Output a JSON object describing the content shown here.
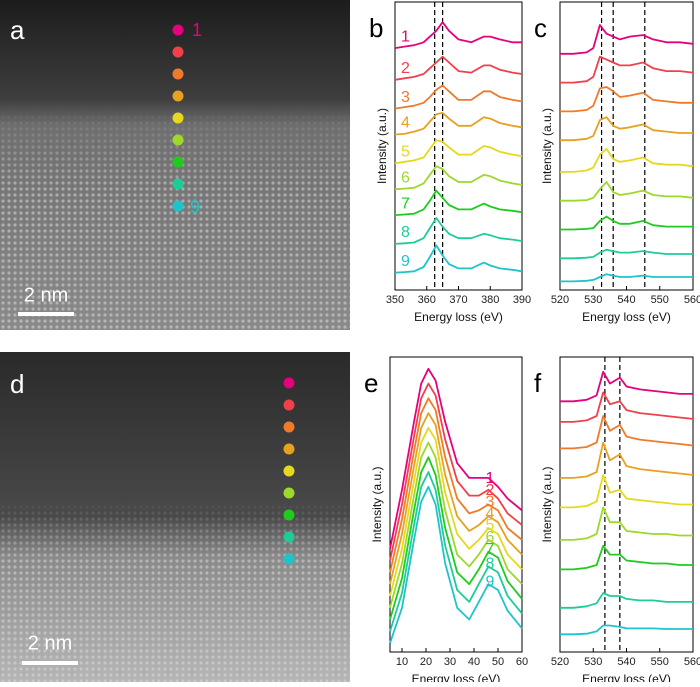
{
  "images": [
    {
      "label": "a",
      "scale_bar": "2 nm",
      "marker_colors": [
        "#e6007e",
        "#f0404a",
        "#f07a2a",
        "#e8a020",
        "#e6d81e",
        "#9ed82a",
        "#1ecc1e",
        "#1ecc9a",
        "#1ec4cc"
      ],
      "first_marker_label": "1",
      "last_marker_label": "9"
    },
    {
      "label": "d",
      "scale_bar": "2 nm",
      "marker_colors": [
        "#e6007e",
        "#f0404a",
        "#f07a2a",
        "#e8a020",
        "#e6d81e",
        "#9ed82a",
        "#1ecc1e",
        "#1ecc9a",
        "#1ec4cc"
      ]
    }
  ],
  "chart_data": [
    {
      "type": "line",
      "panel_label": "b",
      "xlabel": "Energy loss (eV)",
      "ylabel": "Intensity (a.u.)",
      "x": [
        350,
        353,
        356,
        359,
        361,
        363,
        365,
        367,
        370,
        374,
        378,
        380,
        383,
        387,
        390
      ],
      "xlim": [
        350,
        390
      ],
      "xticks": [
        350,
        360,
        370,
        380,
        390
      ],
      "ylim": [
        0,
        10
      ],
      "vlines": [
        362.5,
        365
      ],
      "labels_side": "left",
      "series": [
        {
          "name": "1",
          "color": "#e6007e",
          "values": [
            8.4,
            8.45,
            8.5,
            8.6,
            8.8,
            9.0,
            9.3,
            9.0,
            8.7,
            8.6,
            8.8,
            8.8,
            8.7,
            8.6,
            8.6
          ]
        },
        {
          "name": "2",
          "color": "#f0404a",
          "values": [
            7.3,
            7.35,
            7.4,
            7.5,
            7.7,
            7.9,
            8.1,
            7.9,
            7.6,
            7.55,
            7.8,
            7.8,
            7.65,
            7.55,
            7.5
          ]
        },
        {
          "name": "3",
          "color": "#f07a2a",
          "values": [
            6.3,
            6.35,
            6.4,
            6.5,
            6.7,
            6.95,
            7.1,
            6.9,
            6.6,
            6.6,
            6.9,
            6.9,
            6.7,
            6.6,
            6.55
          ]
        },
        {
          "name": "4",
          "color": "#e8a020",
          "values": [
            5.4,
            5.42,
            5.5,
            5.6,
            5.85,
            6.1,
            6.15,
            5.95,
            5.7,
            5.7,
            6.0,
            5.95,
            5.8,
            5.7,
            5.65
          ]
        },
        {
          "name": "5",
          "color": "#e6d81e",
          "values": [
            4.4,
            4.45,
            4.5,
            4.6,
            4.9,
            5.2,
            5.15,
            4.95,
            4.7,
            4.7,
            5.0,
            4.95,
            4.8,
            4.7,
            4.65
          ]
        },
        {
          "name": "6",
          "color": "#9ed82a",
          "values": [
            3.5,
            3.52,
            3.55,
            3.7,
            4.0,
            4.3,
            4.2,
            3.95,
            3.75,
            3.75,
            4.0,
            3.95,
            3.8,
            3.7,
            3.65
          ]
        },
        {
          "name": "7",
          "color": "#1ecc1e",
          "values": [
            2.6,
            2.62,
            2.65,
            2.8,
            3.1,
            3.45,
            3.2,
            2.95,
            2.8,
            2.8,
            3.0,
            2.9,
            2.8,
            2.75,
            2.7
          ]
        },
        {
          "name": "8",
          "color": "#1ecc9a",
          "values": [
            1.6,
            1.62,
            1.65,
            1.8,
            2.15,
            2.5,
            2.2,
            1.95,
            1.8,
            1.8,
            1.95,
            1.9,
            1.8,
            1.75,
            1.7
          ]
        },
        {
          "name": "9",
          "color": "#1ec4cc",
          "values": [
            0.6,
            0.62,
            0.65,
            0.8,
            1.15,
            1.55,
            1.2,
            0.9,
            0.75,
            0.75,
            0.95,
            0.85,
            0.75,
            0.7,
            0.65
          ]
        }
      ]
    },
    {
      "type": "line",
      "panel_label": "c",
      "xlabel": "Energy loss (eV)",
      "ylabel": "Intensity (a.u.)",
      "x": [
        520,
        524,
        528,
        530,
        532,
        534,
        536,
        538,
        541,
        545,
        548,
        552,
        556,
        560
      ],
      "xlim": [
        520,
        560
      ],
      "xticks": [
        520,
        530,
        540,
        550,
        560
      ],
      "ylim": [
        0,
        10
      ],
      "vlines": [
        532.5,
        536,
        545.5
      ],
      "series": [
        {
          "color": "#e6007e",
          "values": [
            8.2,
            8.2,
            8.25,
            8.4,
            9.2,
            8.9,
            8.8,
            8.7,
            8.8,
            8.85,
            8.7,
            8.6,
            8.6,
            8.55
          ]
        },
        {
          "color": "#f0404a",
          "values": [
            7.2,
            7.2,
            7.25,
            7.4,
            8.1,
            8.0,
            7.9,
            7.8,
            7.8,
            7.9,
            7.7,
            7.6,
            7.6,
            7.55
          ]
        },
        {
          "color": "#f07a2a",
          "values": [
            6.2,
            6.2,
            6.25,
            6.4,
            7.0,
            7.05,
            6.9,
            6.7,
            6.75,
            6.85,
            6.6,
            6.55,
            6.5,
            6.5
          ]
        },
        {
          "color": "#e8a020",
          "values": [
            5.2,
            5.2,
            5.25,
            5.35,
            5.9,
            6.0,
            5.7,
            5.6,
            5.65,
            5.75,
            5.55,
            5.5,
            5.45,
            5.45
          ]
        },
        {
          "color": "#e6d81e",
          "values": [
            4.1,
            4.1,
            4.15,
            4.25,
            4.7,
            4.9,
            4.55,
            4.45,
            4.5,
            4.6,
            4.4,
            4.35,
            4.35,
            4.3
          ]
        },
        {
          "color": "#9ed82a",
          "values": [
            3.1,
            3.1,
            3.12,
            3.2,
            3.5,
            3.75,
            3.4,
            3.3,
            3.35,
            3.45,
            3.3,
            3.25,
            3.25,
            3.2
          ]
        },
        {
          "color": "#1ecc1e",
          "values": [
            2.1,
            2.1,
            2.12,
            2.15,
            2.4,
            2.55,
            2.4,
            2.3,
            2.3,
            2.4,
            2.25,
            2.2,
            2.2,
            2.2
          ]
        },
        {
          "color": "#1ecc9a",
          "values": [
            1.1,
            1.1,
            1.12,
            1.15,
            1.3,
            1.4,
            1.35,
            1.3,
            1.3,
            1.35,
            1.3,
            1.25,
            1.25,
            1.25
          ]
        },
        {
          "color": "#1ec4cc",
          "values": [
            0.3,
            0.3,
            0.32,
            0.35,
            0.45,
            0.55,
            0.5,
            0.45,
            0.45,
            0.5,
            0.45,
            0.45,
            0.45,
            0.45
          ]
        }
      ]
    },
    {
      "type": "line",
      "panel_label": "e",
      "xlabel": "Energy loss (eV)",
      "ylabel": "Intensity (a.u.)",
      "x": [
        5,
        10,
        15,
        18,
        21,
        24,
        28,
        33,
        38,
        42,
        46,
        50,
        54,
        60
      ],
      "xlim": [
        5,
        60
      ],
      "xticks": [
        10,
        20,
        30,
        40,
        50,
        60
      ],
      "ylim": [
        0,
        10
      ],
      "labels_side": "right",
      "series": [
        {
          "name": "1",
          "color": "#e6007e",
          "values": [
            3.5,
            5.5,
            7.8,
            9.1,
            9.6,
            9.2,
            7.8,
            6.4,
            5.9,
            5.9,
            5.9,
            5.6,
            5.2,
            4.8
          ]
        },
        {
          "name": "2",
          "color": "#f0404a",
          "values": [
            3.1,
            5.0,
            7.3,
            8.6,
            9.1,
            8.7,
            7.2,
            5.8,
            5.3,
            5.3,
            5.5,
            5.2,
            4.7,
            4.3
          ]
        },
        {
          "name": "3",
          "color": "#f07a2a",
          "values": [
            2.7,
            4.5,
            6.8,
            8.1,
            8.6,
            8.2,
            6.6,
            5.2,
            4.7,
            4.8,
            5.0,
            4.8,
            4.2,
            3.8
          ]
        },
        {
          "name": "4",
          "color": "#e8a020",
          "values": [
            2.3,
            4.0,
            6.3,
            7.6,
            8.1,
            7.7,
            6.0,
            4.6,
            4.1,
            4.3,
            4.6,
            4.4,
            3.8,
            3.3
          ]
        },
        {
          "name": "5",
          "color": "#e6d81e",
          "values": [
            1.9,
            3.5,
            5.8,
            7.1,
            7.6,
            7.2,
            5.4,
            4.0,
            3.5,
            3.8,
            4.2,
            4.0,
            3.3,
            2.8
          ]
        },
        {
          "name": "6",
          "color": "#9ed82a",
          "values": [
            1.5,
            3.0,
            5.3,
            6.6,
            7.1,
            6.6,
            4.8,
            3.3,
            2.9,
            3.3,
            3.8,
            3.6,
            2.8,
            2.3
          ]
        },
        {
          "name": "7",
          "color": "#1ecc1e",
          "values": [
            1.1,
            2.5,
            4.8,
            6.1,
            6.6,
            6.0,
            4.2,
            2.7,
            2.3,
            2.8,
            3.4,
            3.2,
            2.4,
            1.8
          ]
        },
        {
          "name": "8",
          "color": "#1ecc9a",
          "values": [
            0.7,
            2.0,
            4.3,
            5.6,
            6.1,
            5.5,
            3.6,
            2.1,
            1.7,
            2.3,
            2.9,
            2.7,
            1.9,
            1.3
          ]
        },
        {
          "name": "9",
          "color": "#1ec4cc",
          "values": [
            0.3,
            1.5,
            3.8,
            5.1,
            5.6,
            5.0,
            3.0,
            1.5,
            1.1,
            1.7,
            2.3,
            2.1,
            1.4,
            0.8
          ]
        }
      ]
    },
    {
      "type": "line",
      "panel_label": "f",
      "xlabel": "Energy loss (eV)",
      "ylabel": "Intensity (a.u.)",
      "x": [
        520,
        524,
        528,
        531,
        533,
        535,
        538,
        540,
        544,
        548,
        552,
        556,
        560
      ],
      "xlim": [
        520,
        560
      ],
      "xticks": [
        520,
        530,
        540,
        550,
        560
      ],
      "ylim": [
        0,
        10
      ],
      "vlines": [
        533.5,
        538
      ],
      "series": [
        {
          "color": "#e6007e",
          "values": [
            8.5,
            8.5,
            8.55,
            8.7,
            9.5,
            9.1,
            9.3,
            9.0,
            8.9,
            8.85,
            8.8,
            8.75,
            8.75
          ]
        },
        {
          "color": "#f0404a",
          "values": [
            7.8,
            7.8,
            7.85,
            8.0,
            8.8,
            8.4,
            8.5,
            8.2,
            8.1,
            8.05,
            8.0,
            7.95,
            7.9
          ]
        },
        {
          "color": "#f07a2a",
          "values": [
            6.9,
            6.9,
            6.95,
            7.1,
            8.0,
            7.5,
            7.7,
            7.3,
            7.2,
            7.15,
            7.1,
            7.05,
            7.0
          ]
        },
        {
          "color": "#e8a020",
          "values": [
            5.9,
            5.9,
            5.95,
            6.1,
            7.1,
            6.5,
            6.7,
            6.3,
            6.2,
            6.15,
            6.1,
            6.05,
            6.0
          ]
        },
        {
          "color": "#e6d81e",
          "values": [
            4.9,
            4.9,
            4.95,
            5.1,
            6.0,
            5.4,
            5.5,
            5.2,
            5.15,
            5.1,
            5.05,
            5.0,
            5.0
          ]
        },
        {
          "color": "#9ed82a",
          "values": [
            3.8,
            3.8,
            3.85,
            4.0,
            4.9,
            4.4,
            4.4,
            4.1,
            4.05,
            4.0,
            4.0,
            3.95,
            3.95
          ]
        },
        {
          "color": "#1ecc1e",
          "values": [
            2.8,
            2.8,
            2.85,
            2.95,
            3.6,
            3.3,
            3.3,
            3.1,
            3.05,
            3.0,
            3.0,
            2.95,
            2.95
          ]
        },
        {
          "color": "#1ecc9a",
          "values": [
            1.5,
            1.5,
            1.55,
            1.65,
            2.0,
            1.9,
            1.9,
            1.8,
            1.75,
            1.75,
            1.7,
            1.7,
            1.7
          ]
        },
        {
          "color": "#1ec4cc",
          "values": [
            0.6,
            0.6,
            0.62,
            0.7,
            0.9,
            0.9,
            0.85,
            0.8,
            0.8,
            0.8,
            0.78,
            0.78,
            0.78
          ]
        }
      ]
    }
  ]
}
